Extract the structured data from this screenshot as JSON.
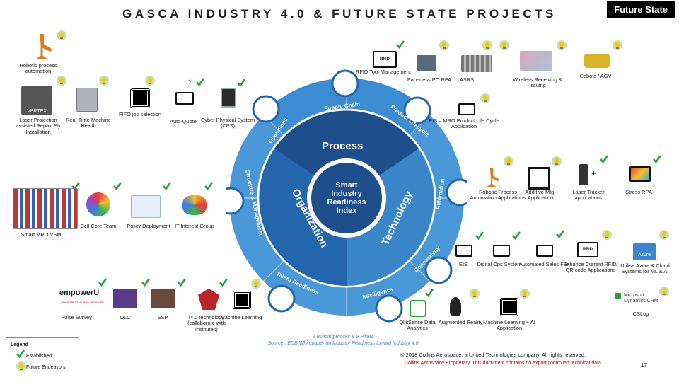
{
  "header": {
    "title": "GASCA INDUSTRY 4.0 & FUTURE STATE PROJECTS",
    "badge": "Future State"
  },
  "center": {
    "title": "Smart Industry Readiness Index",
    "blocks": [
      "Process",
      "Technology",
      "Organization"
    ],
    "pillars": [
      "Supply Chain",
      "Product Lifecycle",
      "Automation",
      "Connectivity",
      "Intelligence",
      "Talent Readiness",
      "Structure & Management",
      "Operations"
    ]
  },
  "items": {
    "robotic_process_automation": "Robotic process automation",
    "laser_projection": "Laser Projection assisted Repair Ply Installation",
    "real_time_machine_health": "Real-Time Machine Health",
    "fifo_job_selection": "FIFO job selection",
    "auto_quote": "Auto-Quote",
    "cps": "Cyber Physical System (CPS)",
    "rfid_tool_mgmt": "RFID Tool Management",
    "paperless_po": "Paperless PO RPA",
    "asrs": "ASRS",
    "wireless_receiving": "Wireless Receiving & Issuing",
    "cobots": "Cobots / AGV",
    "eis_mro": "EIS – MRO Product Life Cycle Application",
    "rpa_applications": "Robotic Process Automation Applications",
    "additive_mfg": "Additive Mfg. Application",
    "laser_tracker": "Laser Tracker applications",
    "stress_rpa": "Stress RPA",
    "smart_mro_vsm": "Smart MRO VSM",
    "cell_core_team": "Cell Core Team",
    "policy_deployment": "Policy Deployment",
    "it_interest_group": "IT Interest Group",
    "eis": "EIS",
    "digital_ops": "Digital Ops System",
    "automated_sales": "Automated Sales File",
    "rfid_qr": "Enhance Current RFID/ QR code Applications",
    "azure": "Utilise Azure & Cloud Systems for ML & AI",
    "pulse_survey": "Pulse Survey",
    "olc": "OLC",
    "esp": "ESP",
    "i40_tech": "I4.0 technology (collaborate with institutes)",
    "machine_learning": "Machine Learning",
    "qliksense": "QlikSense Data Analytics",
    "augmented_reality": "Augmented Reality",
    "ml_ai_app": "Machine Learning + AI Application",
    "cslog": "CSLog"
  },
  "logos": {
    "vertex": "VERTEX",
    "rfid": "RFID",
    "empowerU": "empowerU",
    "empowerU_tag": "CHANGING THE WAY WE WORK",
    "azure": "Azure",
    "ms_dynamics": "Microsoft Dynamics CRM"
  },
  "source": {
    "line1": "3 Building Blocks & 8 Pillars",
    "line2": "Source : EDB Whitepaper on Industry Readiness toward Industry 4.0"
  },
  "legend": {
    "title": "Legend",
    "established": "Established",
    "future": "Future Endeavors"
  },
  "footer": {
    "copyright": "© 2018 Collins Aerospace, a United Technologies company. All rights reserved.",
    "proprietary": "Collins Aerospace Proprietary. This document contains no export controlled technical data.",
    "page": "17"
  },
  "colors": {
    "ring_outer": "#3f8fd2",
    "ring_light": "#5aa7df",
    "process": "#1f4e8c",
    "technology": "#3a86c8",
    "organization": "#2466ad",
    "check": "#2aa13a",
    "bulb": "#f3c324"
  }
}
